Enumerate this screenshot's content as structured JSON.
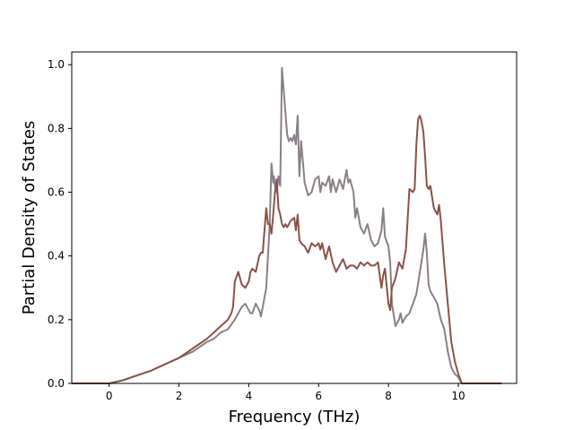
{
  "chart_data": {
    "type": "line",
    "xlabel": "Frequency (THz)",
    "ylabel": "Partial Density of States",
    "xlim": [
      -1.07,
      11.67
    ],
    "ylim": [
      0.0,
      1.04
    ],
    "xticks": [
      0,
      2,
      4,
      6,
      8,
      10
    ],
    "yticks": [
      0.0,
      0.2,
      0.4,
      0.6,
      0.8,
      1.0
    ],
    "grid": false,
    "legend": "none",
    "series": [
      {
        "color": "#8a7f86",
        "x": [
          -1.06,
          -0.5,
          0.0,
          0.4,
          0.8,
          1.2,
          1.6,
          2.0,
          2.4,
          2.8,
          3.0,
          3.2,
          3.4,
          3.6,
          3.7,
          3.8,
          3.9,
          4.0,
          4.05,
          4.1,
          4.2,
          4.3,
          4.35,
          4.4,
          4.5,
          4.55,
          4.6,
          4.65,
          4.7,
          4.72,
          4.75,
          4.8,
          4.85,
          4.9,
          4.95,
          5.0,
          5.05,
          5.1,
          5.15,
          5.2,
          5.25,
          5.3,
          5.35,
          5.4,
          5.45,
          5.5,
          5.6,
          5.7,
          5.8,
          5.9,
          6.0,
          6.05,
          6.1,
          6.2,
          6.3,
          6.35,
          6.4,
          6.5,
          6.6,
          6.7,
          6.8,
          6.85,
          6.9,
          7.0,
          7.05,
          7.1,
          7.2,
          7.3,
          7.4,
          7.5,
          7.6,
          7.7,
          7.8,
          7.85,
          7.9,
          8.0,
          8.05,
          8.1,
          8.2,
          8.3,
          8.35,
          8.4,
          8.5,
          8.6,
          8.7,
          8.8,
          8.9,
          9.0,
          9.05,
          9.1,
          9.15,
          9.2,
          9.3,
          9.4,
          9.5,
          9.6,
          9.7,
          9.8,
          9.9,
          10.0,
          10.1,
          10.2,
          11.24
        ],
        "y": [
          0.0,
          0.0,
          0.0,
          0.01,
          0.025,
          0.04,
          0.06,
          0.08,
          0.1,
          0.13,
          0.14,
          0.16,
          0.17,
          0.2,
          0.22,
          0.24,
          0.25,
          0.23,
          0.22,
          0.22,
          0.25,
          0.23,
          0.21,
          0.24,
          0.3,
          0.4,
          0.5,
          0.69,
          0.63,
          0.65,
          0.62,
          0.6,
          0.65,
          0.62,
          0.99,
          0.92,
          0.85,
          0.78,
          0.76,
          0.77,
          0.76,
          0.78,
          0.75,
          0.84,
          0.65,
          0.76,
          0.63,
          0.59,
          0.6,
          0.64,
          0.65,
          0.6,
          0.63,
          0.62,
          0.65,
          0.6,
          0.64,
          0.6,
          0.64,
          0.61,
          0.67,
          0.63,
          0.64,
          0.6,
          0.52,
          0.55,
          0.49,
          0.47,
          0.5,
          0.45,
          0.43,
          0.44,
          0.48,
          0.55,
          0.46,
          0.43,
          0.38,
          0.25,
          0.18,
          0.2,
          0.22,
          0.19,
          0.21,
          0.22,
          0.25,
          0.28,
          0.35,
          0.42,
          0.47,
          0.41,
          0.31,
          0.29,
          0.27,
          0.25,
          0.2,
          0.17,
          0.1,
          0.05,
          0.03,
          0.02,
          0.0,
          0.0,
          0.0
        ]
      },
      {
        "color": "#8b5247",
        "x": [
          -1.06,
          -0.5,
          0.0,
          0.4,
          0.8,
          1.2,
          1.6,
          2.0,
          2.4,
          2.8,
          3.0,
          3.2,
          3.4,
          3.5,
          3.55,
          3.6,
          3.7,
          3.8,
          3.9,
          4.0,
          4.05,
          4.1,
          4.2,
          4.3,
          4.35,
          4.4,
          4.5,
          4.55,
          4.6,
          4.65,
          4.7,
          4.75,
          4.8,
          4.85,
          4.9,
          4.95,
          5.0,
          5.05,
          5.1,
          5.2,
          5.3,
          5.35,
          5.4,
          5.45,
          5.5,
          5.6,
          5.7,
          5.8,
          5.9,
          6.0,
          6.05,
          6.1,
          6.2,
          6.3,
          6.4,
          6.5,
          6.6,
          6.7,
          6.8,
          6.9,
          7.0,
          7.1,
          7.2,
          7.3,
          7.4,
          7.5,
          7.6,
          7.7,
          7.8,
          7.85,
          7.9,
          8.0,
          8.05,
          8.1,
          8.2,
          8.3,
          8.4,
          8.5,
          8.6,
          8.7,
          8.75,
          8.8,
          8.85,
          8.9,
          8.95,
          9.0,
          9.05,
          9.1,
          9.15,
          9.2,
          9.3,
          9.4,
          9.45,
          9.5,
          9.6,
          9.7,
          9.8,
          9.9,
          10.0,
          10.1,
          10.2,
          11.24
        ],
        "y": [
          0.0,
          0.0,
          0.0,
          0.01,
          0.025,
          0.04,
          0.06,
          0.08,
          0.11,
          0.14,
          0.16,
          0.18,
          0.2,
          0.22,
          0.24,
          0.32,
          0.35,
          0.31,
          0.3,
          0.32,
          0.35,
          0.36,
          0.35,
          0.4,
          0.41,
          0.41,
          0.55,
          0.5,
          0.5,
          0.47,
          0.53,
          0.6,
          0.64,
          0.55,
          0.53,
          0.5,
          0.49,
          0.5,
          0.49,
          0.51,
          0.52,
          0.48,
          0.53,
          0.45,
          0.44,
          0.43,
          0.41,
          0.44,
          0.43,
          0.44,
          0.42,
          0.44,
          0.39,
          0.43,
          0.38,
          0.35,
          0.37,
          0.39,
          0.36,
          0.37,
          0.37,
          0.36,
          0.38,
          0.37,
          0.38,
          0.37,
          0.37,
          0.38,
          0.3,
          0.34,
          0.36,
          0.25,
          0.23,
          0.3,
          0.33,
          0.38,
          0.36,
          0.42,
          0.61,
          0.6,
          0.61,
          0.75,
          0.83,
          0.84,
          0.82,
          0.79,
          0.71,
          0.62,
          0.61,
          0.62,
          0.55,
          0.53,
          0.56,
          0.51,
          0.37,
          0.25,
          0.13,
          0.07,
          0.03,
          0.0,
          0.0,
          0.0
        ]
      }
    ]
  }
}
